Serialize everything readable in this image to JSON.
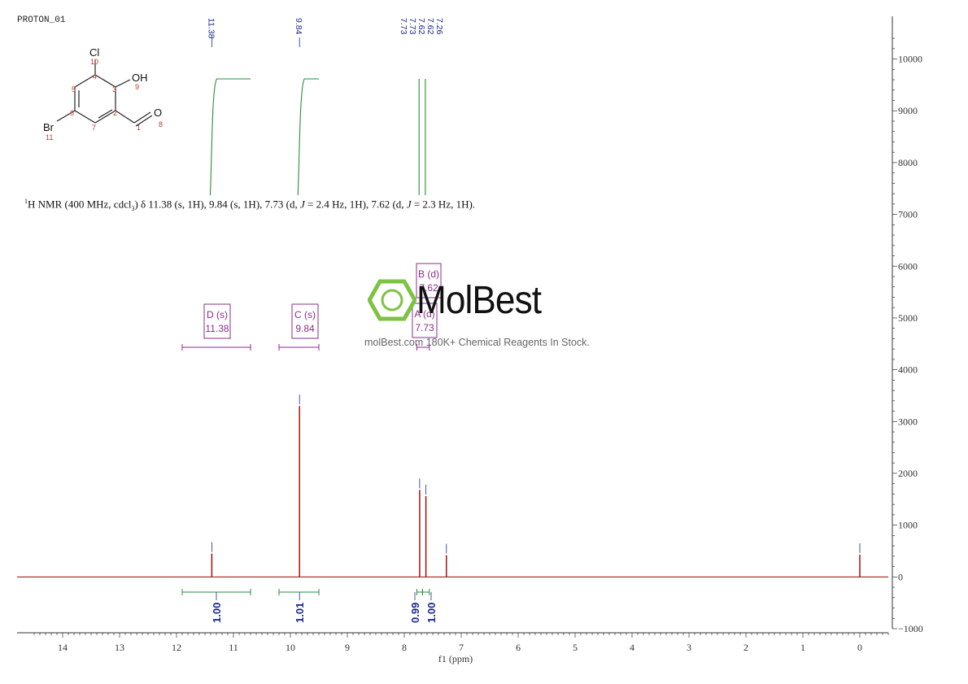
{
  "experiment_label": "PROTON_01",
  "structure": {
    "atoms": {
      "cl": "Cl",
      "oh": "OH",
      "br": "Br",
      "o": "O",
      "n10": "10",
      "n4": "4",
      "n5": "5",
      "n3": "3",
      "n9": "9",
      "n6": "6",
      "n2": "2",
      "n7": "7",
      "n1": "1",
      "n8": "8",
      "n11": "11"
    }
  },
  "nmr_description": {
    "prefix_sup": "1",
    "part1": "H NMR (400 MHz, cdcl",
    "sub": "3",
    "part2": ") δ 11.38 (s, 1H), 9.84 (s, 1H), 7.73 (d, ",
    "j1": "J",
    "part3": " = 2.4 Hz, 1H), 7.62 (d, ",
    "j2": "J",
    "part4": " = 2.3 Hz, 1H)."
  },
  "watermark": {
    "name": "MolBest",
    "tagline": "molBest.com 180K+ Chemical Reagents In Stock."
  },
  "colors": {
    "spectrum": "#a00000",
    "integral": "#2e8b3a",
    "peak_label": "#1a2a8c",
    "multiplet": "#8b2e8b",
    "axis": "#333333",
    "watermark_green": "#7dc242"
  },
  "chart_data": {
    "type": "line",
    "title": "",
    "xlabel": "f1 (ppm)",
    "ylabel": "",
    "xlim": [
      14.8,
      -0.5
    ],
    "ylim": [
      -1000,
      10700
    ],
    "x_ticks": [
      14,
      13,
      12,
      11,
      10,
      9,
      8,
      7,
      6,
      5,
      4,
      3,
      2,
      1,
      0
    ],
    "y_ticks": [
      -1000,
      0,
      1000,
      2000,
      3000,
      4000,
      5000,
      6000,
      7000,
      8000,
      9000,
      10000
    ],
    "peaks": [
      {
        "ppm": 11.38,
        "intensity": 450
      },
      {
        "ppm": 9.84,
        "intensity": 3300
      },
      {
        "ppm": 7.73,
        "intensity": 1680
      },
      {
        "ppm": 7.62,
        "intensity": 1560
      },
      {
        "ppm": 7.26,
        "intensity": 420
      },
      {
        "ppm": 0.0,
        "intensity": 430
      }
    ],
    "peak_labels": [
      "11.38",
      "9.84",
      "7.73",
      "7.73",
      "7.62",
      "7.62",
      "7.26"
    ],
    "peak_label_positions": [
      11.38,
      9.84,
      7.75,
      7.71,
      7.64,
      7.6,
      7.26
    ],
    "multiplets": [
      {
        "label": "D (s)",
        "value": "11.38",
        "range": [
          11.9,
          10.7
        ]
      },
      {
        "label": "C (s)",
        "value": "9.84",
        "range": [
          10.2,
          9.5
        ]
      },
      {
        "label": "B (d)",
        "value": "7.62",
        "range": [
          7.68,
          7.56
        ]
      },
      {
        "label": "A (d)",
        "value": "7.73",
        "range": [
          7.78,
          7.68
        ]
      }
    ],
    "integrals": [
      {
        "value": "1.00",
        "range": [
          11.9,
          10.7
        ],
        "center": 11.3
      },
      {
        "value": "1.01",
        "range": [
          10.2,
          9.5
        ],
        "center": 9.84
      },
      {
        "value": "0.99",
        "range": [
          7.78,
          7.68
        ],
        "center": 7.73
      },
      {
        "value": "1.00",
        "range": [
          7.68,
          7.56
        ],
        "center": 7.62
      }
    ]
  }
}
